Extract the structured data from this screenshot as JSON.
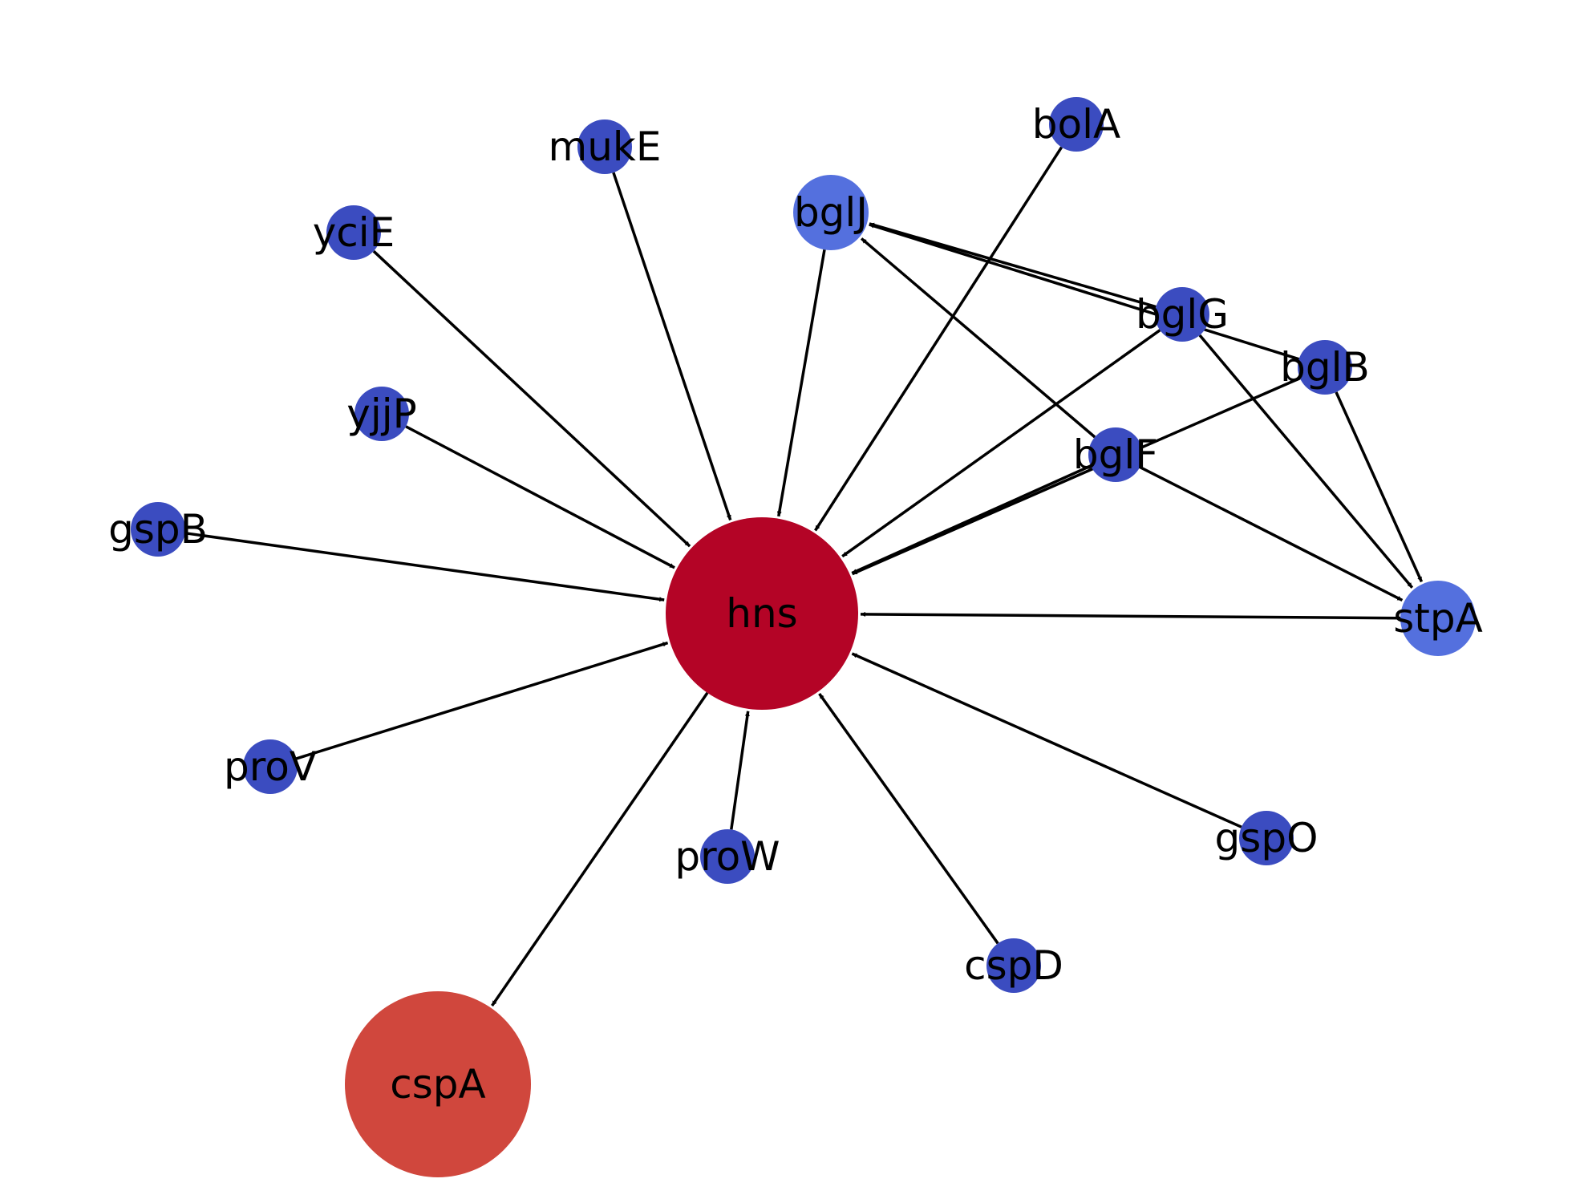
{
  "graph": {
    "directed": true,
    "nodes": [
      {
        "id": "hns",
        "label": "hns",
        "color": "#b40426"
      },
      {
        "id": "cspA",
        "label": "cspA",
        "color": "#d0473d"
      },
      {
        "id": "bglJ",
        "label": "bglJ",
        "color": "#5470de"
      },
      {
        "id": "stpA",
        "label": "stpA",
        "color": "#5470de"
      },
      {
        "id": "bolA",
        "label": "bolA",
        "color": "#3b4cc0"
      },
      {
        "id": "mukE",
        "label": "mukE",
        "color": "#3b4cc0"
      },
      {
        "id": "yciE",
        "label": "yciE",
        "color": "#3b4cc0"
      },
      {
        "id": "yjjP",
        "label": "yjjP",
        "color": "#3b4cc0"
      },
      {
        "id": "gspB",
        "label": "gspB",
        "color": "#3b4cc0"
      },
      {
        "id": "proV",
        "label": "proV",
        "color": "#3b4cc0"
      },
      {
        "id": "proW",
        "label": "proW",
        "color": "#3b4cc0"
      },
      {
        "id": "cspD",
        "label": "cspD",
        "color": "#3b4cc0"
      },
      {
        "id": "gspO",
        "label": "gspO",
        "color": "#3b4cc0"
      },
      {
        "id": "bglG",
        "label": "bglG",
        "color": "#3b4cc0"
      },
      {
        "id": "bglB",
        "label": "bglB",
        "color": "#3b4cc0"
      },
      {
        "id": "bglF",
        "label": "bglF",
        "color": "#3b4cc0"
      }
    ],
    "edges": [
      {
        "source": "mukE",
        "target": "hns"
      },
      {
        "source": "yciE",
        "target": "hns"
      },
      {
        "source": "yjjP",
        "target": "hns"
      },
      {
        "source": "gspB",
        "target": "hns"
      },
      {
        "source": "proV",
        "target": "hns"
      },
      {
        "source": "proW",
        "target": "hns"
      },
      {
        "source": "cspD",
        "target": "hns"
      },
      {
        "source": "gspO",
        "target": "hns"
      },
      {
        "source": "stpA",
        "target": "hns"
      },
      {
        "source": "bglF",
        "target": "hns"
      },
      {
        "source": "bglG",
        "target": "hns"
      },
      {
        "source": "bolA",
        "target": "hns"
      },
      {
        "source": "bglJ",
        "target": "hns"
      },
      {
        "source": "hns",
        "target": "cspA"
      },
      {
        "source": "bglG",
        "target": "bglJ"
      },
      {
        "source": "bglB",
        "target": "bglJ"
      },
      {
        "source": "bglF",
        "target": "bglJ"
      },
      {
        "source": "bglG",
        "target": "stpA"
      },
      {
        "source": "bglB",
        "target": "stpA"
      },
      {
        "source": "bglF",
        "target": "stpA"
      },
      {
        "source": "bglB",
        "target": "hns"
      }
    ]
  }
}
